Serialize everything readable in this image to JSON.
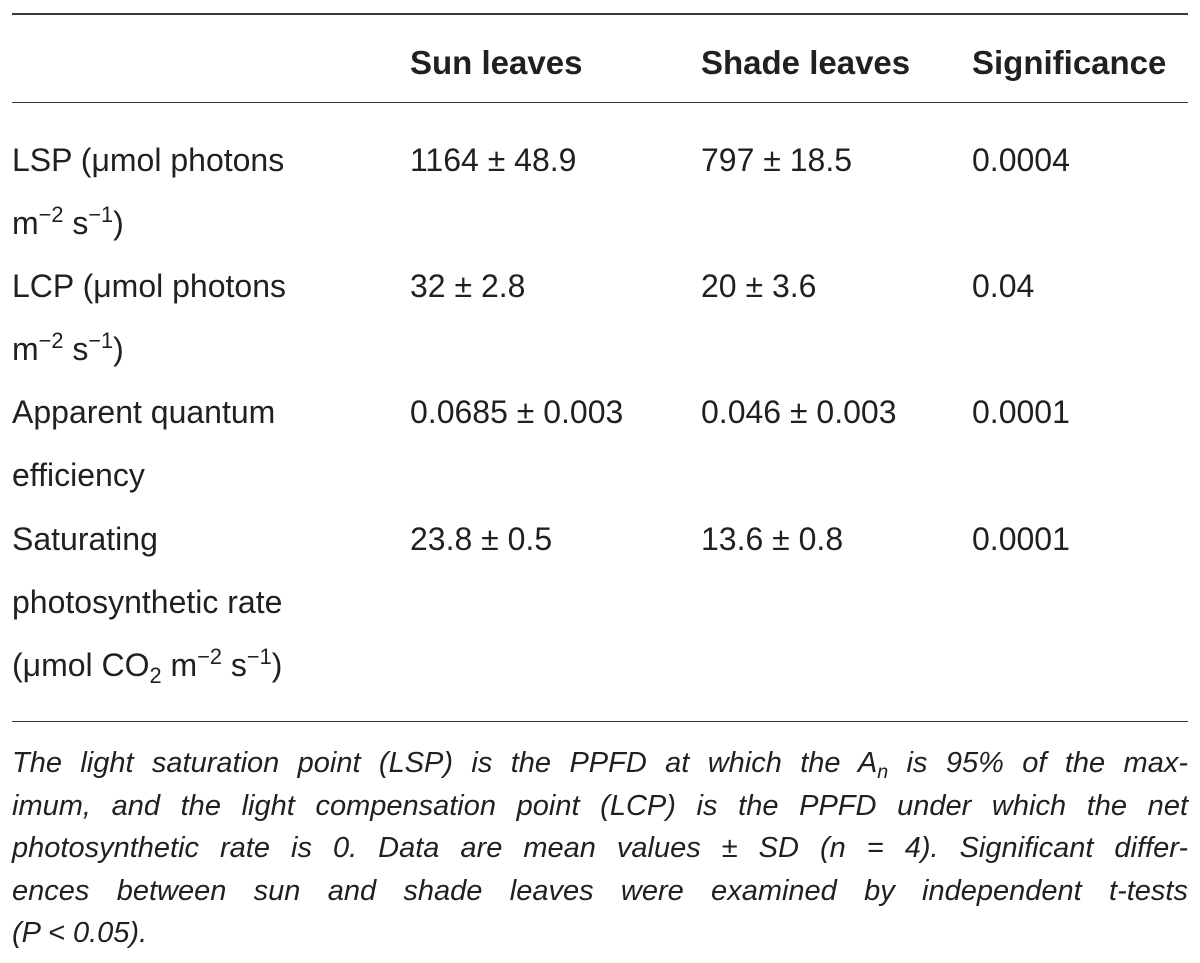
{
  "table": {
    "headers": [
      "",
      "Sun leaves",
      "Shade leaves",
      "Significance"
    ],
    "rows": [
      {
        "label_lines": [
          "LSP (μmol photons",
          "m<sup>−2</sup> s<sup>−1</sup>)"
        ],
        "sun": "1164 ± 48.9",
        "shade": "797 ± 18.5",
        "significance": "0.0004"
      },
      {
        "label_lines": [
          "LCP (μmol photons",
          "m<sup>−2</sup> s<sup>−1</sup>)"
        ],
        "sun": "32 ± 2.8",
        "shade": "20 ± 3.6",
        "significance": "0.04"
      },
      {
        "label_lines": [
          "Apparent quantum",
          "efficiency"
        ],
        "sun": "0.0685 ± 0.003",
        "shade": "0.046 ± 0.003",
        "significance": "0.0001"
      },
      {
        "label_lines": [
          "Saturating",
          "photosynthetic rate",
          "(μmol CO<sub>2</sub> m<sup>−2</sup> s<sup>−1</sup>)"
        ],
        "sun": "23.8 ± 0.5",
        "shade": "13.6 ± 0.8",
        "significance": "0.0001"
      }
    ]
  },
  "footnote_lines": [
    "The light saturation point (LSP) is the PPFD at which the A<sub>n</sub> is 95% of the max-",
    "imum, and the light compensation point (LCP) is the PPFD under which the net",
    "photosynthetic rate is 0. Data are mean values ± SD (n = 4). Significant differ-",
    "ences between sun and shade leaves were examined by independent t-tests",
    "(P &lt; 0.05)."
  ]
}
